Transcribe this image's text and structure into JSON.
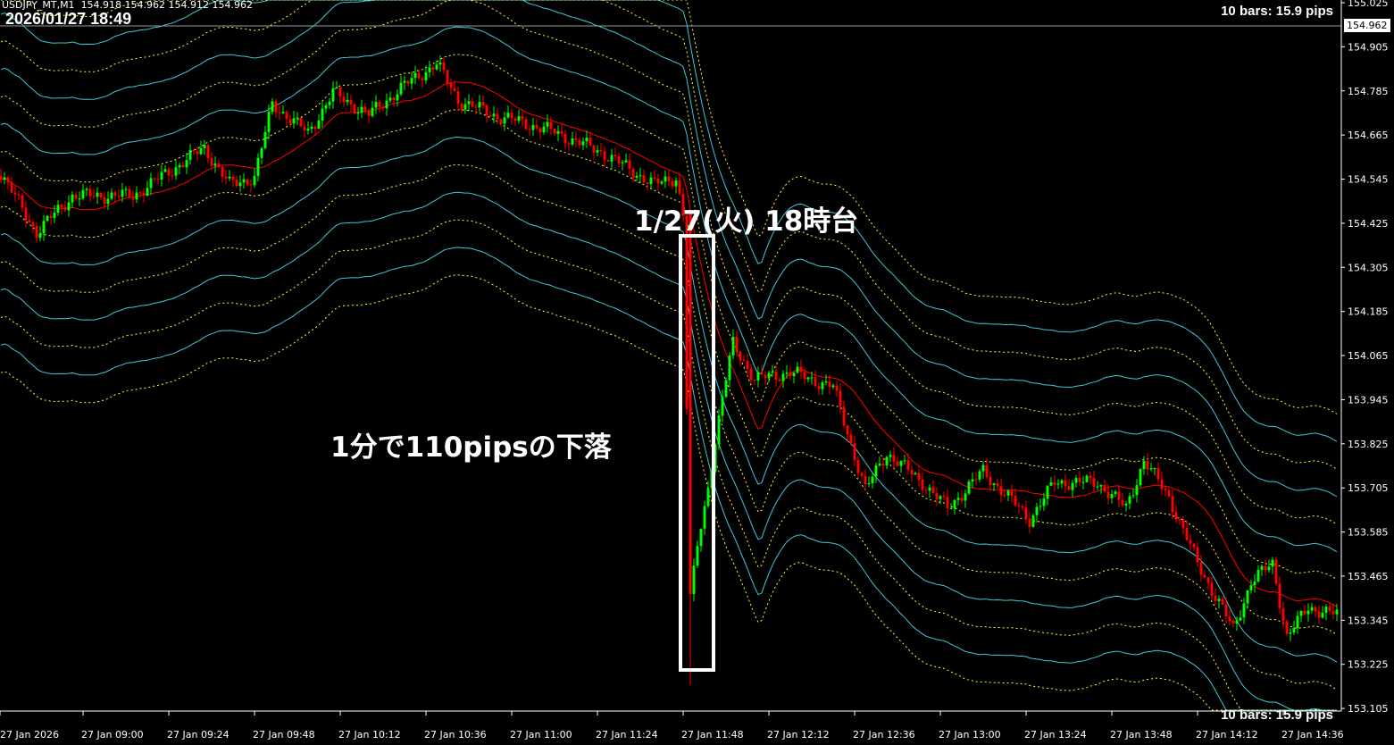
{
  "header": {
    "symbol": "USDJPY_MT,M1",
    "ohlc": "154.918 154.962 154.912 154.962"
  },
  "clock": "2026/01/27 18:49",
  "bars_info_top": "10 bars: 15.9 pips",
  "bars_info_bottom": "10 bars: 15.9 pips",
  "current_price": "154.962",
  "annotations": {
    "title": "1/27(火) 18時台",
    "drop": "1分で110pipsの下落"
  },
  "colors": {
    "background": "#000000",
    "bull": "#00ff00",
    "bear": "#ff0000",
    "ma": "#ff0000",
    "band_a": "#40c8d8",
    "band_b": "#ffff40",
    "text": "#ffffff"
  },
  "chart_data": {
    "type": "candlestick",
    "timeframe": "M1",
    "ylim": [
      153.06,
      155.04
    ],
    "y_ticks": [
      "155.025",
      "154.905",
      "154.785",
      "154.665",
      "154.545",
      "154.425",
      "154.305",
      "154.185",
      "154.065",
      "153.945",
      "153.825",
      "153.705",
      "153.585",
      "153.465",
      "153.345",
      "153.225",
      "153.105"
    ],
    "x_ticks": [
      "27 Jan 2026",
      "27 Jan 09:00",
      "27 Jan 09:24",
      "27 Jan 09:48",
      "27 Jan 10:12",
      "27 Jan 10:36",
      "27 Jan 11:00",
      "27 Jan 11:24",
      "27 Jan 11:48",
      "27 Jan 12:12",
      "27 Jan 12:36",
      "27 Jan 13:00",
      "27 Jan 13:24",
      "27 Jan 13:48",
      "27 Jan 14:12",
      "27 Jan 14:36"
    ],
    "close_path": [
      [
        "08:37",
        154.56
      ],
      [
        "08:47",
        154.4
      ],
      [
        "08:57",
        154.5
      ],
      [
        "09:14",
        154.5
      ],
      [
        "09:34",
        154.63
      ],
      [
        "09:41",
        154.53
      ],
      [
        "09:48",
        154.55
      ],
      [
        "09:53",
        154.75
      ],
      [
        "10:03",
        154.67
      ],
      [
        "10:10",
        154.78
      ],
      [
        "10:20",
        154.72
      ],
      [
        "10:30",
        154.8
      ],
      [
        "10:39",
        154.86
      ],
      [
        "10:45",
        154.76
      ],
      [
        "10:55",
        154.72
      ],
      [
        "11:10",
        154.68
      ],
      [
        "11:25",
        154.62
      ],
      [
        "11:40",
        154.53
      ],
      [
        "11:46",
        154.55
      ],
      [
        "11:48",
        154.45
      ],
      [
        "11:50",
        153.4
      ],
      [
        "11:52",
        153.55
      ],
      [
        "11:54",
        153.65
      ],
      [
        "11:59",
        153.95
      ],
      [
        "12:02",
        154.1
      ],
      [
        "12:08",
        154.0
      ],
      [
        "12:18",
        154.02
      ],
      [
        "12:30",
        153.98
      ],
      [
        "12:39",
        153.7
      ],
      [
        "12:45",
        153.8
      ],
      [
        "12:55",
        153.72
      ],
      [
        "13:02",
        153.65
      ],
      [
        "13:12",
        153.75
      ],
      [
        "13:25",
        153.62
      ],
      [
        "13:32",
        153.72
      ],
      [
        "13:44",
        153.72
      ],
      [
        "13:52",
        153.65
      ],
      [
        "13:57",
        153.78
      ],
      [
        "14:04",
        153.68
      ],
      [
        "14:12",
        153.5
      ],
      [
        "14:22",
        153.32
      ],
      [
        "14:27",
        153.45
      ],
      [
        "14:33",
        153.5
      ],
      [
        "14:37",
        153.3
      ],
      [
        "14:43",
        153.38
      ],
      [
        "14:51",
        153.36
      ]
    ],
    "spike": {
      "time": "11:50",
      "high": 154.45,
      "low": 153.17
    },
    "indicators": [
      "moving average (red)",
      "envelope bands (cyan solid, yellow dotted)"
    ]
  }
}
